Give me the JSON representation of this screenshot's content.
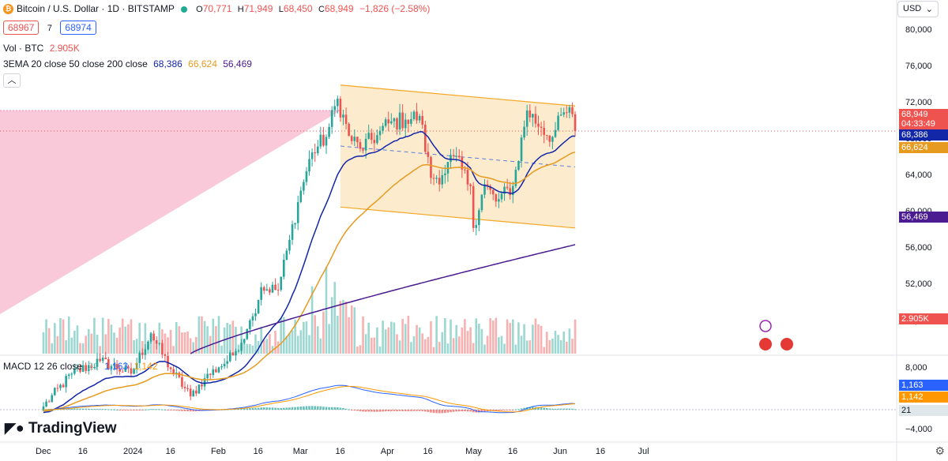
{
  "header": {
    "symbol_title": "Bitcoin / U.S. Dollar · 1D · BITSTAMP",
    "coin_glyph": "₿",
    "ohlc": {
      "o": "70,771",
      "h": "71,949",
      "l": "68,450",
      "c": "68,949",
      "chg": "−1,826 (−2.58%)"
    },
    "bid": "68967",
    "spread": "7",
    "ask": "68974",
    "vol_label": "Vol · BTC",
    "vol_value": "2.905K",
    "ema_label": "3EMA 20 close 50 close 200 close",
    "ema_values": [
      "68,386",
      "66,624",
      "56,469"
    ],
    "currency": "USD"
  },
  "macd": {
    "label": "MACD 12 26 close",
    "v1": "21",
    "v2": "1,163",
    "v3": "1,142"
  },
  "logo": {
    "text": "TradingView"
  },
  "colors": {
    "up": "#26a69a",
    "down": "#ef5350",
    "ema20": "#1226a8",
    "ema50": "#e69b20",
    "ema200": "#4a1b91",
    "channel": "#f5a623",
    "channel_fill": "#fde9c9",
    "triangle": "#f8bbd0",
    "macd_line": "#2962ff",
    "signal_line": "#ff9800"
  },
  "price_axis": {
    "labels": [
      "80,000",
      "76,000",
      "72,000",
      "68,000",
      "64,000",
      "60,000",
      "56,000",
      "52,000",
      "48,000"
    ],
    "values": [
      80000,
      76000,
      72000,
      68000,
      64000,
      60000,
      56000,
      52000,
      48000
    ]
  },
  "price_labels": [
    {
      "text": "68,949",
      "sub": "04:33:49",
      "value": 68949,
      "color": "#ef5350"
    },
    {
      "text": "68,386",
      "value": 68386,
      "color": "#1226a8"
    },
    {
      "text": "66,624",
      "value": 66624,
      "color": "#e69b20"
    },
    {
      "text": "56,469",
      "value": 56469,
      "color": "#4a1b91"
    },
    {
      "text": "2.905K",
      "value": null,
      "color": "#ef5350"
    }
  ],
  "macd_axis": {
    "labels": [
      "8,000",
      "−4,000"
    ],
    "values": [
      8000,
      -4000
    ]
  },
  "time_axis": {
    "labels": [
      "Dec",
      "16",
      "2024",
      "16",
      "Feb",
      "16",
      "Mar",
      "16",
      "Apr",
      "16",
      "May",
      "16",
      "Jun",
      "16",
      "Jul"
    ],
    "days": [
      0,
      15,
      31,
      46,
      62,
      77,
      91,
      106,
      122,
      137,
      152,
      167,
      183,
      198,
      213
    ]
  },
  "chart_data": {
    "type": "candlestick",
    "title": "Bitcoin / U.S. Dollar · 1D · BITSTAMP",
    "y_range": [
      44500,
      81000
    ],
    "x_start": "2023-12-01",
    "series_close_anchors": [
      {
        "day": 0,
        "close": 38700
      },
      {
        "day": 10,
        "close": 42300
      },
      {
        "day": 20,
        "close": 43700
      },
      {
        "day": 31,
        "close": 42300
      },
      {
        "day": 38,
        "close": 46700
      },
      {
        "day": 45,
        "close": 42800
      },
      {
        "day": 52,
        "close": 39800
      },
      {
        "day": 57,
        "close": 41800
      },
      {
        "day": 62,
        "close": 43000
      },
      {
        "day": 67,
        "close": 44300
      },
      {
        "day": 72,
        "close": 47200
      },
      {
        "day": 74,
        "close": 48600
      },
      {
        "day": 77,
        "close": 51800
      },
      {
        "day": 83,
        "close": 51500
      },
      {
        "day": 87,
        "close": 57000
      },
      {
        "day": 91,
        "close": 62400
      },
      {
        "day": 95,
        "close": 66600
      },
      {
        "day": 100,
        "close": 68300
      },
      {
        "day": 104,
        "close": 72500
      },
      {
        "day": 108,
        "close": 68400
      },
      {
        "day": 112,
        "close": 67000
      },
      {
        "day": 118,
        "close": 68500
      },
      {
        "day": 122,
        "close": 69800
      },
      {
        "day": 128,
        "close": 70200
      },
      {
        "day": 133,
        "close": 70600
      },
      {
        "day": 137,
        "close": 63800
      },
      {
        "day": 141,
        "close": 64100
      },
      {
        "day": 145,
        "close": 66200
      },
      {
        "day": 151,
        "close": 62900
      },
      {
        "day": 152,
        "close": 58300
      },
      {
        "day": 156,
        "close": 63100
      },
      {
        "day": 160,
        "close": 61200
      },
      {
        "day": 166,
        "close": 62900
      },
      {
        "day": 171,
        "close": 71200
      },
      {
        "day": 176,
        "close": 69300
      },
      {
        "day": 180,
        "close": 68300
      },
      {
        "day": 184,
        "close": 71000
      },
      {
        "day": 187,
        "close": 70800
      },
      {
        "day": 188,
        "close": 68949
      }
    ],
    "ema_series": [
      {
        "name": "EMA 20",
        "last": 68386
      },
      {
        "name": "EMA 50",
        "last": 66624
      },
      {
        "name": "EMA 200",
        "last": 56469
      }
    ],
    "channel": {
      "upper": [
        [
          105,
          74000
        ],
        [
          188,
          71700
        ]
      ],
      "lower": [
        [
          105,
          60600
        ],
        [
          188,
          58300
        ]
      ]
    },
    "volume_last": "2.905K",
    "macd": {
      "macd": 1163,
      "signal": 1142,
      "hist": 21
    }
  }
}
